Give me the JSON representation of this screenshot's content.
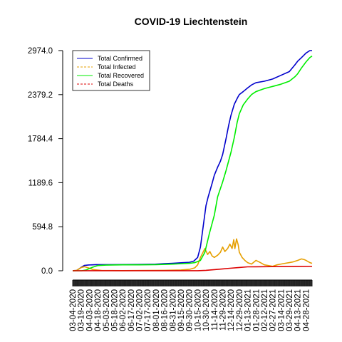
{
  "chart_data": {
    "type": "line",
    "title": "COVID-19 Liechtenstein",
    "xlabel": "",
    "ylabel": "",
    "ylim": [
      0,
      2974
    ],
    "y_ticks": [
      "0.0",
      "594.8",
      "1189.6",
      "1784.4",
      "2379.2",
      "2974.0"
    ],
    "y_tick_values": [
      0,
      594.8,
      1189.6,
      1784.4,
      2379.2,
      2974.0
    ],
    "x_tick_labels": [
      "03-04-2020",
      "03-19-2020",
      "04-03-2020",
      "04-18-2020",
      "05-03-2020",
      "05-18-2020",
      "06-02-2020",
      "06-17-2020",
      "07-02-2020",
      "07-17-2020",
      "08-01-2020",
      "08-16-2020",
      "08-31-2020",
      "09-15-2020",
      "09-30-2020",
      "10-15-2020",
      "10-30-2020",
      "11-14-2020",
      "11-29-2020",
      "12-14-2020",
      "12-29-2020",
      "01-13-2021",
      "01-28-2021",
      "02-12-2021",
      "02-27-2021",
      "03-14-2021",
      "03-29-2021",
      "04-13-2021",
      "04-28-2021"
    ],
    "x_range": [
      "03-04-2020",
      "05-09-2021"
    ],
    "legend_position": "top-left",
    "series": [
      {
        "name": "Total Confirmed",
        "color": "#0000cc",
        "dash": "solid",
        "points": [
          [
            "03-04-2020",
            1
          ],
          [
            "03-11-2020",
            4
          ],
          [
            "03-16-2020",
            28
          ],
          [
            "03-20-2020",
            50
          ],
          [
            "03-25-2020",
            72
          ],
          [
            "04-01-2020",
            78
          ],
          [
            "04-15-2020",
            82
          ],
          [
            "05-15-2020",
            83
          ],
          [
            "06-30-2020",
            85
          ],
          [
            "07-31-2020",
            89
          ],
          [
            "08-16-2020",
            96
          ],
          [
            "08-31-2020",
            101
          ],
          [
            "09-15-2020",
            108
          ],
          [
            "09-30-2020",
            114
          ],
          [
            "10-08-2020",
            130
          ],
          [
            "10-15-2020",
            180
          ],
          [
            "10-20-2020",
            320
          ],
          [
            "10-25-2020",
            600
          ],
          [
            "10-30-2020",
            880
          ],
          [
            "11-03-2020",
            1000
          ],
          [
            "11-10-2020",
            1180
          ],
          [
            "11-14-2020",
            1290
          ],
          [
            "11-20-2020",
            1400
          ],
          [
            "11-25-2020",
            1480
          ],
          [
            "11-29-2020",
            1570
          ],
          [
            "12-05-2020",
            1780
          ],
          [
            "12-10-2020",
            1970
          ],
          [
            "12-14-2020",
            2100
          ],
          [
            "12-20-2020",
            2250
          ],
          [
            "12-26-2020",
            2340
          ],
          [
            "12-29-2020",
            2380
          ],
          [
            "01-05-2021",
            2420
          ],
          [
            "01-13-2021",
            2470
          ],
          [
            "01-20-2021",
            2510
          ],
          [
            "01-28-2021",
            2540
          ],
          [
            "02-12-2021",
            2560
          ],
          [
            "02-27-2021",
            2590
          ],
          [
            "03-14-2021",
            2640
          ],
          [
            "03-29-2021",
            2690
          ],
          [
            "04-08-2021",
            2780
          ],
          [
            "04-13-2021",
            2830
          ],
          [
            "04-20-2021",
            2880
          ],
          [
            "04-28-2021",
            2940
          ],
          [
            "05-05-2021",
            2974
          ],
          [
            "05-09-2021",
            2974
          ]
        ]
      },
      {
        "name": "Total Infected",
        "color": "#e69f00",
        "dash": "dashed",
        "points": [
          [
            "03-04-2020",
            1
          ],
          [
            "03-11-2020",
            4
          ],
          [
            "03-16-2020",
            28
          ],
          [
            "03-20-2020",
            45
          ],
          [
            "03-25-2020",
            55
          ],
          [
            "04-01-2020",
            40
          ],
          [
            "04-10-2020",
            15
          ],
          [
            "04-25-2020",
            4
          ],
          [
            "06-01-2020",
            2
          ],
          [
            "07-15-2020",
            4
          ],
          [
            "08-15-2020",
            6
          ],
          [
            "09-15-2020",
            10
          ],
          [
            "10-01-2020",
            20
          ],
          [
            "10-10-2020",
            40
          ],
          [
            "10-15-2020",
            80
          ],
          [
            "10-20-2020",
            180
          ],
          [
            "10-24-2020",
            240
          ],
          [
            "10-28-2020",
            300
          ],
          [
            "11-02-2020",
            220
          ],
          [
            "11-06-2020",
            260
          ],
          [
            "11-10-2020",
            200
          ],
          [
            "11-14-2020",
            180
          ],
          [
            "11-20-2020",
            210
          ],
          [
            "11-25-2020",
            250
          ],
          [
            "11-29-2020",
            320
          ],
          [
            "12-03-2020",
            260
          ],
          [
            "12-08-2020",
            300
          ],
          [
            "12-12-2020",
            360
          ],
          [
            "12-16-2020",
            300
          ],
          [
            "12-19-2020",
            420
          ],
          [
            "12-21-2020",
            300
          ],
          [
            "12-24-2020",
            430
          ],
          [
            "12-27-2020",
            350
          ],
          [
            "12-29-2020",
            250
          ],
          [
            "01-03-2021",
            180
          ],
          [
            "01-08-2021",
            140
          ],
          [
            "01-13-2021",
            110
          ],
          [
            "01-20-2021",
            90
          ],
          [
            "01-28-2021",
            140
          ],
          [
            "02-05-2021",
            110
          ],
          [
            "02-12-2021",
            80
          ],
          [
            "02-20-2021",
            70
          ],
          [
            "02-27-2021",
            60
          ],
          [
            "03-07-2021",
            80
          ],
          [
            "03-14-2021",
            90
          ],
          [
            "03-21-2021",
            100
          ],
          [
            "03-29-2021",
            110
          ],
          [
            "04-05-2021",
            120
          ],
          [
            "04-13-2021",
            140
          ],
          [
            "04-20-2021",
            160
          ],
          [
            "04-25-2021",
            150
          ],
          [
            "04-28-2021",
            140
          ],
          [
            "05-05-2021",
            110
          ],
          [
            "05-09-2021",
            100
          ]
        ]
      },
      {
        "name": "Total Recovered",
        "color": "#00ee00",
        "dash": "solid",
        "points": [
          [
            "03-04-2020",
            0
          ],
          [
            "03-20-2020",
            0
          ],
          [
            "03-28-2020",
            10
          ],
          [
            "04-03-2020",
            30
          ],
          [
            "04-10-2020",
            50
          ],
          [
            "04-18-2020",
            70
          ],
          [
            "05-03-2020",
            76
          ],
          [
            "06-02-2020",
            80
          ],
          [
            "07-02-2020",
            80
          ],
          [
            "08-01-2020",
            82
          ],
          [
            "08-31-2020",
            90
          ],
          [
            "09-15-2020",
            95
          ],
          [
            "09-30-2020",
            100
          ],
          [
            "10-10-2020",
            110
          ],
          [
            "10-20-2020",
            140
          ],
          [
            "10-28-2020",
            250
          ],
          [
            "11-05-2020",
            500
          ],
          [
            "11-14-2020",
            750
          ],
          [
            "11-20-2020",
            1000
          ],
          [
            "11-29-2020",
            1200
          ],
          [
            "12-05-2020",
            1350
          ],
          [
            "12-14-2020",
            1600
          ],
          [
            "12-20-2020",
            1800
          ],
          [
            "12-25-2020",
            2000
          ],
          [
            "12-29-2020",
            2120
          ],
          [
            "01-05-2021",
            2240
          ],
          [
            "01-13-2021",
            2320
          ],
          [
            "01-20-2021",
            2380
          ],
          [
            "01-28-2021",
            2420
          ],
          [
            "02-12-2021",
            2460
          ],
          [
            "02-27-2021",
            2490
          ],
          [
            "03-14-2021",
            2520
          ],
          [
            "03-29-2021",
            2560
          ],
          [
            "04-08-2021",
            2620
          ],
          [
            "04-13-2021",
            2660
          ],
          [
            "04-20-2021",
            2740
          ],
          [
            "04-28-2021",
            2820
          ],
          [
            "05-05-2021",
            2880
          ],
          [
            "05-09-2021",
            2900
          ]
        ]
      },
      {
        "name": "Total Deaths",
        "color": "#dd0000",
        "dash": "dashed",
        "points": [
          [
            "03-04-2020",
            0
          ],
          [
            "04-01-2020",
            1
          ],
          [
            "05-01-2020",
            1
          ],
          [
            "08-01-2020",
            1
          ],
          [
            "09-30-2020",
            1
          ],
          [
            "10-15-2020",
            1
          ],
          [
            "10-30-2020",
            5
          ],
          [
            "11-14-2020",
            15
          ],
          [
            "11-29-2020",
            25
          ],
          [
            "12-14-2020",
            35
          ],
          [
            "12-29-2020",
            44
          ],
          [
            "01-13-2021",
            53
          ],
          [
            "01-28-2021",
            54
          ],
          [
            "02-12-2021",
            55
          ],
          [
            "03-14-2021",
            56
          ],
          [
            "04-13-2021",
            58
          ],
          [
            "05-09-2021",
            59
          ]
        ]
      }
    ]
  }
}
